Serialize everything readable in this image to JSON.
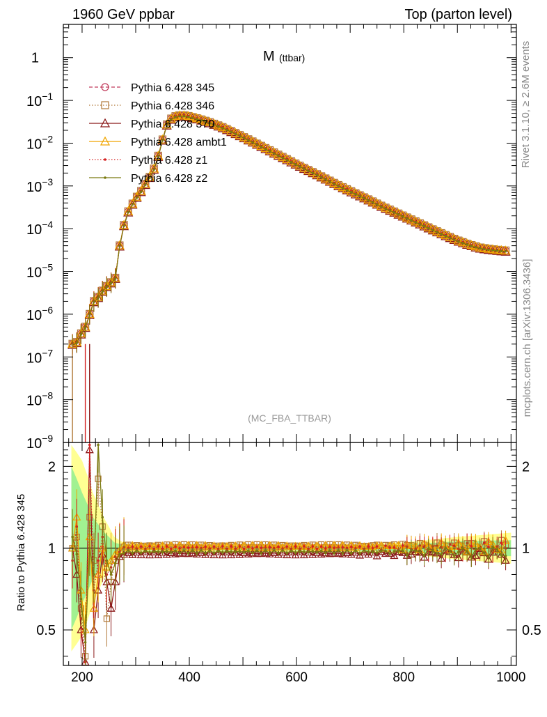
{
  "header": {
    "left": "1960 GeV ppbar",
    "right": "Top (parton level)"
  },
  "side": {
    "rivet": "Rivet 3.1.10, ≥ 2.6M events",
    "mcplots": "mcplots.cern.ch [arXiv:1306.3436]"
  },
  "colors": {
    "s345": "#c0395a",
    "s346": "#b07838",
    "s370": "#8b1a1a",
    "ambt1": "#f0a500",
    "z1": "#d42020",
    "z2": "#7a7a10",
    "band_inner": "#90ee90",
    "band_outer": "#ffff80"
  },
  "chart_data": [
    {
      "type": "line",
      "title": "M",
      "title_sub": "(ttbar)",
      "analysis": "(MC_FBA_TTBAR)",
      "xlim": [
        165,
        1010
      ],
      "ylim": [
        1e-09,
        6
      ],
      "yscale": "log",
      "x_ticks_labeled": [
        "200",
        "400",
        "600",
        "800",
        "1000"
      ],
      "y_ticks": [
        {
          "value": 1,
          "label": "1"
        },
        {
          "value": 0.1,
          "base": "10",
          "exp": "−1"
        },
        {
          "value": 0.01,
          "base": "10",
          "exp": "−2"
        },
        {
          "value": 0.001,
          "base": "10",
          "exp": "−3"
        },
        {
          "value": 0.0001,
          "base": "10",
          "exp": "−4"
        },
        {
          "value": 1e-05,
          "base": "10",
          "exp": "−5"
        },
        {
          "value": 1e-06,
          "base": "10",
          "exp": "−6"
        },
        {
          "value": 1e-07,
          "base": "10",
          "exp": "−7"
        },
        {
          "value": 1e-08,
          "base": "10",
          "exp": "−8"
        },
        {
          "value": 1e-09,
          "base": "10",
          "exp": "−9"
        }
      ],
      "legend_position": "top-left",
      "series": [
        {
          "name": "Pythia 6.428 345",
          "key": "s345",
          "marker": "circle-open",
          "dash": "dashed"
        },
        {
          "name": "Pythia 6.428 346",
          "key": "s346",
          "marker": "square-open",
          "dash": "dotted"
        },
        {
          "name": "Pythia 6.428 370",
          "key": "s370",
          "marker": "triangle-open",
          "dash": "solid"
        },
        {
          "name": "Pythia 6.428 ambt1",
          "key": "ambt1",
          "marker": "triangle-open",
          "dash": "solid"
        },
        {
          "name": "Pythia 6.428 z1",
          "key": "z1",
          "marker": "dot",
          "dash": "dotted"
        },
        {
          "name": "Pythia 6.428 z2",
          "key": "z2",
          "marker": "dot",
          "dash": "solid"
        }
      ],
      "shape_points": [
        [
          182,
          2e-07
        ],
        [
          190,
          2.2e-07
        ],
        [
          198,
          3.5e-07
        ],
        [
          206,
          5e-07
        ],
        [
          214,
          1e-06
        ],
        [
          222,
          2e-06
        ],
        [
          230,
          2.5e-06
        ],
        [
          238,
          3.5e-06
        ],
        [
          246,
          4.5e-06
        ],
        [
          254,
          5.5e-06
        ],
        [
          262,
          7e-06
        ],
        [
          270,
          4e-05
        ],
        [
          278,
          0.00012
        ],
        [
          286,
          0.00025
        ],
        [
          294,
          0.00038
        ],
        [
          302,
          0.00055
        ],
        [
          310,
          0.00075
        ],
        [
          318,
          0.0011
        ],
        [
          326,
          0.0016
        ],
        [
          334,
          0.0025
        ],
        [
          342,
          0.005
        ],
        [
          350,
          0.012
        ],
        [
          358,
          0.027
        ],
        [
          366,
          0.037
        ],
        [
          374,
          0.042
        ],
        [
          382,
          0.044
        ],
        [
          390,
          0.044
        ],
        [
          400,
          0.042
        ],
        [
          420,
          0.036
        ],
        [
          440,
          0.03
        ],
        [
          460,
          0.024
        ],
        [
          480,
          0.0185
        ],
        [
          500,
          0.014
        ],
        [
          520,
          0.0105
        ],
        [
          540,
          0.0078
        ],
        [
          560,
          0.0058
        ],
        [
          580,
          0.0043
        ],
        [
          600,
          0.0032
        ],
        [
          620,
          0.0024
        ],
        [
          640,
          0.0018
        ],
        [
          660,
          0.00135
        ],
        [
          680,
          0.001
        ],
        [
          700,
          0.00076
        ],
        [
          720,
          0.00058
        ],
        [
          740,
          0.00044
        ],
        [
          760,
          0.00033
        ],
        [
          780,
          0.000255
        ],
        [
          800,
          0.000195
        ],
        [
          820,
          0.00015
        ],
        [
          840,
          0.000115
        ],
        [
          860,
          8.8e-05
        ],
        [
          880,
          6.8e-05
        ],
        [
          900,
          5.3e-05
        ],
        [
          920,
          4.3e-05
        ],
        [
          940,
          3.6e-05
        ],
        [
          960,
          3.3e-05
        ],
        [
          980,
          3.1e-05
        ],
        [
          996,
          3e-05
        ]
      ]
    },
    {
      "type": "line",
      "ylabel": "Ratio to Pythia 6.428 345",
      "xlim": [
        165,
        1010
      ],
      "ylim": [
        0.37,
        2.45
      ],
      "yscale": "log",
      "x_ticks_labeled": [
        "200",
        "400",
        "600",
        "800",
        "1000"
      ],
      "y_ticks": [
        {
          "value": 2,
          "label": "2"
        },
        {
          "value": 1,
          "label": "1"
        },
        {
          "value": 0.5,
          "label": "0.5"
        }
      ],
      "reference_line": 1,
      "series_offsets": {
        "s345": 0.0,
        "s346": 0.02,
        "s370": -0.045,
        "ambt1": 0.015,
        "z1": 0.005,
        "z2": -0.03
      },
      "low_mass_ratios": {
        "s346": [
          [
            182,
            1.0
          ],
          [
            190,
            1.1
          ],
          [
            198,
            0.6
          ],
          [
            206,
            0.4
          ],
          [
            214,
            1.3
          ],
          [
            222,
            0.9
          ],
          [
            230,
            1.8
          ],
          [
            238,
            1.2
          ],
          [
            246,
            0.55
          ],
          [
            254,
            0.75
          ],
          [
            262,
            0.9
          ],
          [
            270,
            0.97
          ]
        ],
        "s370": [
          [
            182,
            1.0
          ],
          [
            190,
            0.8
          ],
          [
            198,
            0.5
          ],
          [
            206,
            0.35
          ],
          [
            214,
            2.3
          ],
          [
            222,
            0.5
          ],
          [
            230,
            0.7
          ],
          [
            238,
            0.95
          ],
          [
            246,
            0.75
          ],
          [
            254,
            0.6
          ],
          [
            262,
            0.75
          ],
          [
            270,
            0.93
          ]
        ],
        "ambt1": [
          [
            182,
            1.0
          ],
          [
            190,
            1.3
          ],
          [
            198,
            0.7
          ],
          [
            206,
            0.5
          ],
          [
            214,
            1.1
          ],
          [
            222,
            0.6
          ],
          [
            230,
            0.8
          ],
          [
            238,
            1.0
          ],
          [
            246,
            0.85
          ],
          [
            254,
            0.9
          ],
          [
            262,
            0.95
          ],
          [
            270,
            0.98
          ]
        ],
        "z1": [
          [
            182,
            0.9
          ],
          [
            190,
            1.2
          ],
          [
            198,
            0.55
          ],
          [
            206,
            0.38
          ],
          [
            214,
            2.4
          ],
          [
            222,
            0.7
          ],
          [
            230,
            0.9
          ],
          [
            238,
            1.1
          ],
          [
            246,
            0.8
          ],
          [
            254,
            0.85
          ],
          [
            262,
            0.93
          ],
          [
            270,
            0.97
          ]
        ],
        "z2": [
          [
            182,
            1.1
          ],
          [
            190,
            0.95
          ],
          [
            198,
            0.65
          ],
          [
            206,
            0.45
          ],
          [
            214,
            1.0
          ],
          [
            222,
            0.8
          ],
          [
            230,
            2.4
          ],
          [
            238,
            1.3
          ],
          [
            246,
            0.9
          ],
          [
            254,
            0.8
          ],
          [
            262,
            0.88
          ],
          [
            270,
            0.95
          ]
        ]
      },
      "band_outer": [
        [
          180,
          2.4
        ],
        [
          200,
          2.1
        ],
        [
          220,
          1.6
        ],
        [
          240,
          1.3
        ],
        [
          260,
          1.1
        ],
        [
          280,
          1.04
        ],
        [
          700,
          1.03
        ],
        [
          800,
          1.05
        ],
        [
          900,
          1.1
        ],
        [
          1000,
          1.14
        ]
      ],
      "band_inner": [
        [
          180,
          2.0
        ],
        [
          200,
          1.6
        ],
        [
          220,
          1.3
        ],
        [
          240,
          1.15
        ],
        [
          260,
          1.05
        ],
        [
          280,
          1.02
        ],
        [
          700,
          1.02
        ],
        [
          800,
          1.03
        ],
        [
          900,
          1.06
        ],
        [
          1000,
          1.07
        ]
      ]
    }
  ]
}
